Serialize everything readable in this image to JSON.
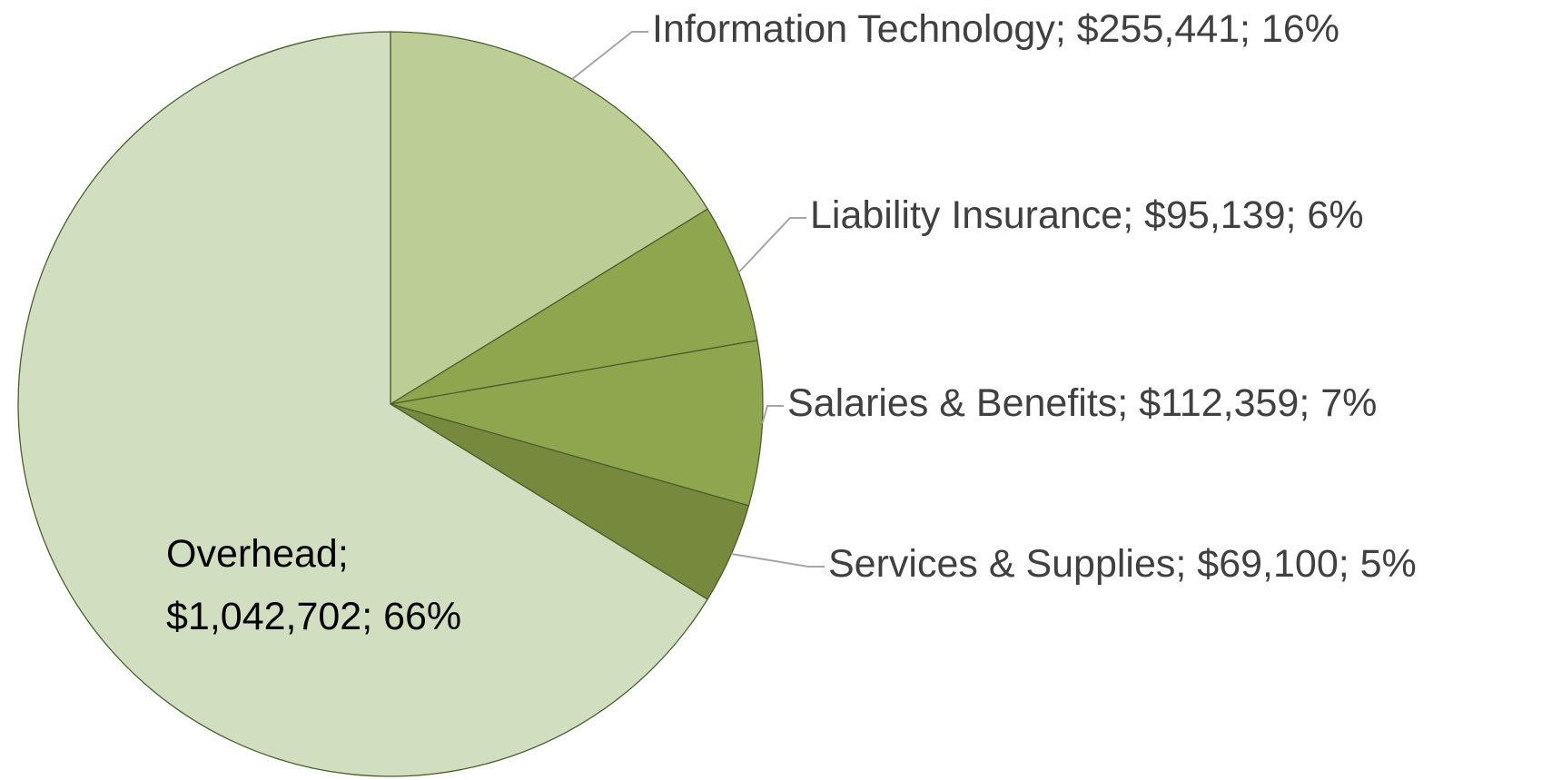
{
  "chart_data": {
    "type": "pie",
    "labels": [
      "Information Technology; $255,441; 16%",
      "Liability Insurance; $95,139; 6%",
      "Salaries & Benefits; $112,359; 7%",
      "Services & Supplies; $69,100; 5%",
      "Overhead;\n$1,042,702; 66%"
    ],
    "values": [
      255441,
      95139,
      112359,
      69100,
      1042702
    ],
    "colors": [
      "#bccd95",
      "#8ea64e",
      "#8ea64e",
      "#76893d",
      "#d2dec0"
    ]
  }
}
